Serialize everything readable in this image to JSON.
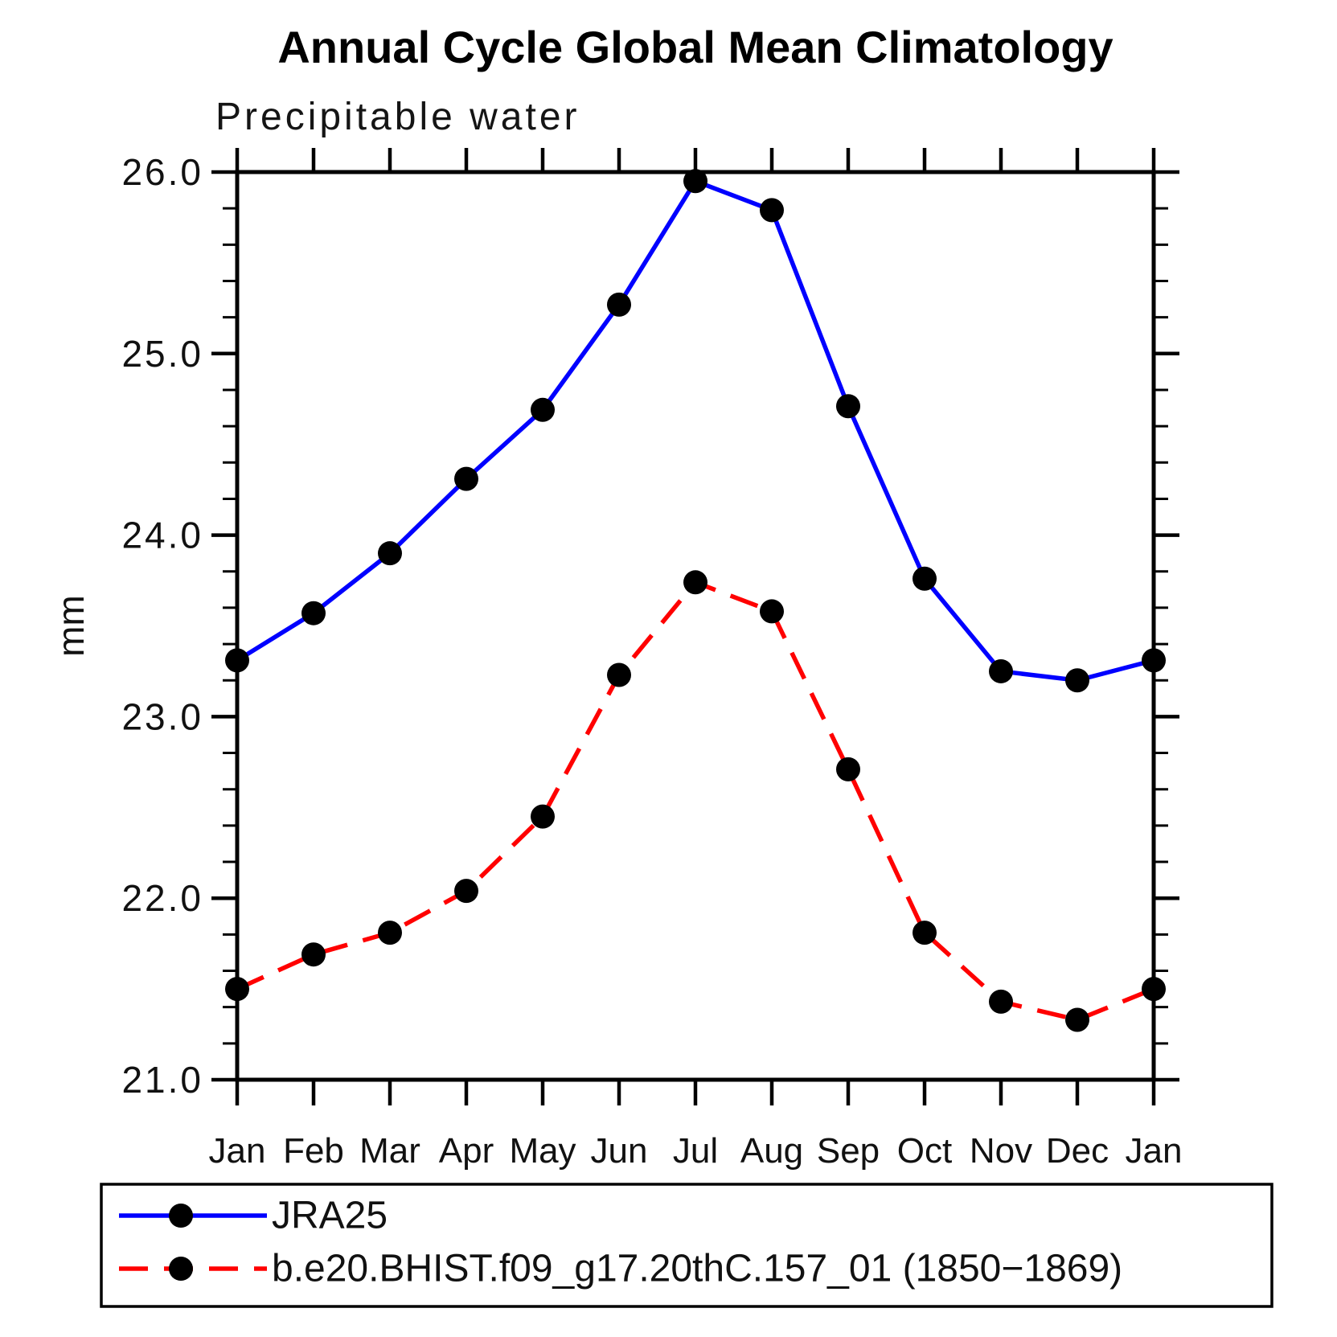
{
  "chart_data": {
    "type": "line",
    "title": "Annual Cycle Global Mean Climatology",
    "subtitle": "Precipitable water",
    "ylabel": "mm",
    "categories": [
      "Jan",
      "Feb",
      "Mar",
      "Apr",
      "May",
      "Jun",
      "Jul",
      "Aug",
      "Sep",
      "Oct",
      "Nov",
      "Dec",
      "Jan"
    ],
    "series": [
      {
        "name": "JRA25",
        "color": "#0000ff",
        "style": "solid",
        "marker": "circle",
        "marker_color": "#000000",
        "values": [
          23.31,
          23.57,
          23.9,
          24.31,
          24.69,
          25.27,
          25.95,
          25.79,
          24.71,
          23.76,
          23.25,
          23.2,
          23.31
        ]
      },
      {
        "name": "b.e20.BHIST.f09_g17.20thC.157_01 (1850−1869)",
        "color": "#ff0000",
        "style": "dashed",
        "marker": "circle",
        "marker_color": "#000000",
        "values": [
          21.5,
          21.69,
          21.81,
          22.04,
          22.45,
          23.23,
          23.74,
          23.58,
          22.71,
          21.81,
          21.43,
          21.33,
          21.5
        ]
      }
    ],
    "ylim": [
      21.0,
      26.0
    ],
    "ytick_major": 1.0,
    "ytick_minor": 0.2,
    "ytick_labels": [
      "21.0",
      "22.0",
      "23.0",
      "24.0",
      "25.0",
      "26.0"
    ],
    "grid": false,
    "legend_position": "bottom-box",
    "axis_color": "#000000"
  }
}
